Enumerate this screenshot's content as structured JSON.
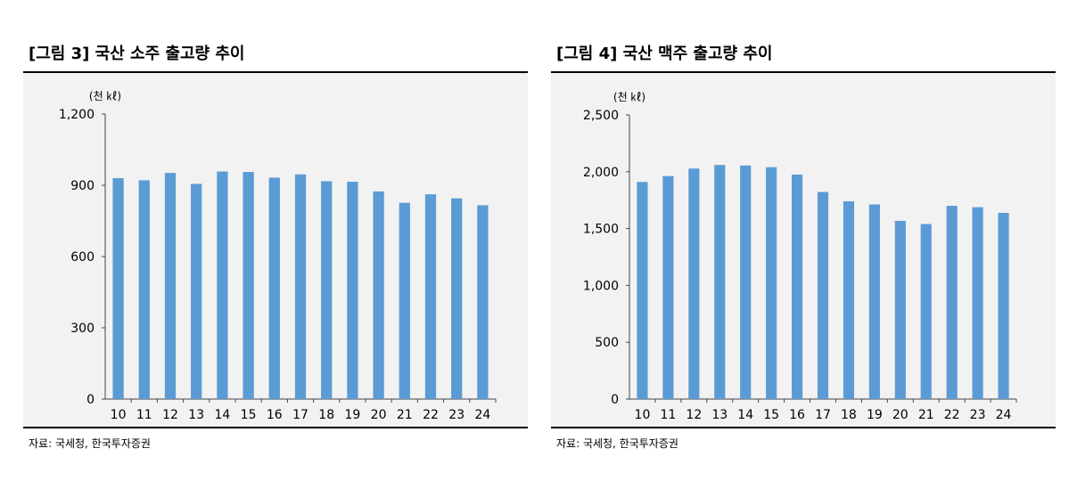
{
  "charts": {
    "left": {
      "title": "[그림 3] 국산 소주 출고량 추이",
      "source": "자료: 국세청, 한국투자증권"
    },
    "right": {
      "title": "[그림 4] 국산 맥주 출고량 추이",
      "source": "자료: 국세청, 한국투자증권"
    }
  },
  "chart_data": [
    {
      "type": "bar",
      "title": "[그림 3] 국산 소주 출고량 추이",
      "unit_label": "(천 ㎘)",
      "categories": [
        "10",
        "11",
        "12",
        "13",
        "14",
        "15",
        "16",
        "17",
        "18",
        "19",
        "20",
        "21",
        "22",
        "23",
        "24"
      ],
      "values": [
        930,
        921,
        952,
        906,
        958,
        956,
        932,
        946,
        917,
        915,
        874,
        826,
        862,
        845,
        816
      ],
      "ylim": [
        0,
        1200
      ],
      "yticks": [
        "0",
        "300",
        "600",
        "900",
        "1,200"
      ],
      "ytick_values": [
        0,
        300,
        600,
        900,
        1200
      ],
      "bar_color": "#5b9bd5",
      "grid": false,
      "legend": "none"
    },
    {
      "type": "bar",
      "title": "[그림 4] 국산 맥주 출고량 추이",
      "unit_label": "(천 ㎘)",
      "categories": [
        "10",
        "11",
        "12",
        "13",
        "14",
        "15",
        "16",
        "17",
        "18",
        "19",
        "20",
        "21",
        "22",
        "23",
        "24"
      ],
      "values": [
        1910,
        1962,
        2028,
        2060,
        2055,
        2040,
        1975,
        1822,
        1740,
        1712,
        1568,
        1540,
        1700,
        1688,
        1638
      ],
      "ylim": [
        0,
        2500
      ],
      "yticks": [
        "0",
        "500",
        "1,000",
        "1,500",
        "2,000",
        "2,500"
      ],
      "ytick_values": [
        0,
        500,
        1000,
        1500,
        2000,
        2500
      ],
      "bar_color": "#5b9bd5",
      "grid": false,
      "legend": "none"
    }
  ]
}
